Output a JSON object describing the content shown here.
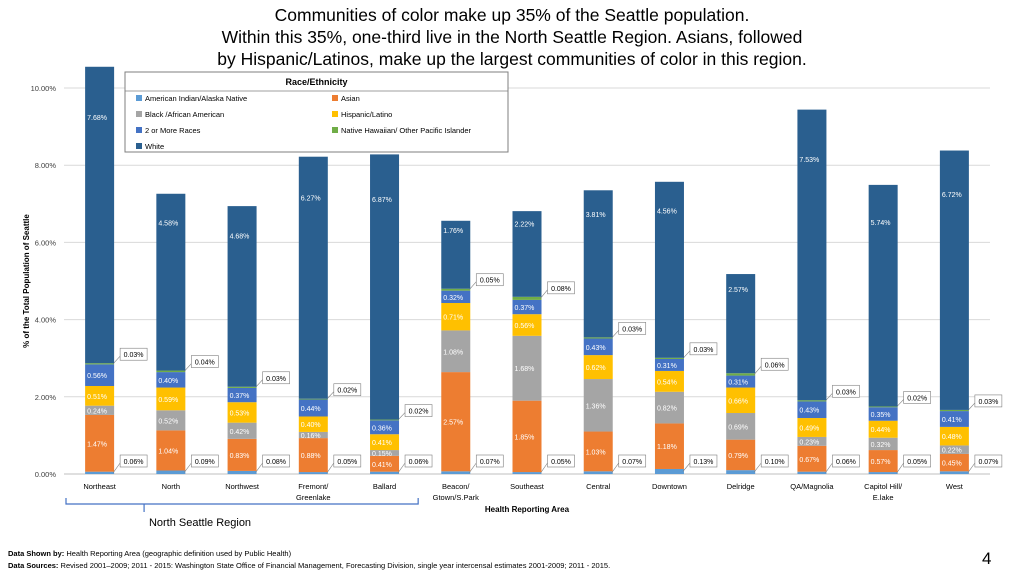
{
  "title_lines": [
    "Communities of color make up 35% of the Seattle population.",
    "Within this 35%, one-third live in the North Seattle Region. Asians, followed",
    "by Hispanic/Latinos, make up the largest communities of color in this region."
  ],
  "region_label": "North Seattle Region",
  "footer": {
    "shown_by_label": "Data Shown by:",
    "shown_by_text": " Health Reporting Area (geographic definition used by Public Health)",
    "sources_label": "Data Sources:",
    "sources_text": " Revised 2001–2009; 2011 - 2015: Washington State Office of Financial Management, Forecasting Division, single year intercensal estimates 2001-2009; 2011 - 2015."
  },
  "page_number": "4",
  "colors": {
    "white": "#2a5f8f",
    "asian": "#ed7d31",
    "black": "#a5a5a5",
    "hispanic": "#ffc000",
    "two_or_more": "#4472c4",
    "nhpi": "#70ad47",
    "aian": "#5b9bd5"
  },
  "chart_data": {
    "type": "bar",
    "stacked": true,
    "xlabel": "Health Reporting Area",
    "ylabel": "% of the Total Population of Seattle",
    "ylim": [
      0,
      10
    ],
    "yticks": [
      "0.00%",
      "2.00%",
      "4.00%",
      "6.00%",
      "8.00%",
      "10.00%"
    ],
    "legend": {
      "title": "Race/Ethnicity",
      "position": "top-left",
      "entries": [
        {
          "key": "aian",
          "label": "American Indian/Alaska Native"
        },
        {
          "key": "asian",
          "label": "Asian"
        },
        {
          "key": "black",
          "label": "Black /African American"
        },
        {
          "key": "hispanic",
          "label": "Hispanic/Latino"
        },
        {
          "key": "two_or_more",
          "label": "2 or More Races"
        },
        {
          "key": "nhpi",
          "label": "Native Hawaiian/ Other Pacific Islander"
        },
        {
          "key": "white",
          "label": "White"
        }
      ]
    },
    "categories": [
      {
        "label": [
          "Northeast"
        ]
      },
      {
        "label": [
          "North"
        ]
      },
      {
        "label": [
          "Northwest"
        ]
      },
      {
        "label": [
          "Fremont/",
          "Greenlake"
        ]
      },
      {
        "label": [
          "Ballard"
        ]
      },
      {
        "label": [
          "Beacon/",
          "Gtown/S.Park"
        ]
      },
      {
        "label": [
          "Southeast"
        ]
      },
      {
        "label": [
          "Central"
        ]
      },
      {
        "label": [
          "Downtown"
        ]
      },
      {
        "label": [
          "Delridge"
        ]
      },
      {
        "label": [
          "QA/Magnolia"
        ]
      },
      {
        "label": [
          "Capitol Hill/",
          "E.lake"
        ]
      },
      {
        "label": [
          "West"
        ]
      }
    ],
    "series": [
      {
        "key": "aian",
        "name": "American Indian/Alaska Native",
        "values": [
          0.06,
          0.09,
          0.08,
          0.05,
          0.06,
          0.07,
          0.05,
          0.07,
          0.13,
          0.1,
          0.06,
          0.05,
          0.07
        ],
        "labels": [
          "0.06%",
          "0.09%",
          "0.08%",
          "0.05%",
          "0.06%",
          "0.07%",
          "0.05%",
          "0.07%",
          "0.13%",
          "0.10%",
          "0.06%",
          "0.05%",
          "0.07%"
        ],
        "callout": true
      },
      {
        "key": "asian",
        "name": "Asian",
        "values": [
          1.47,
          1.04,
          0.83,
          0.88,
          0.41,
          2.57,
          1.85,
          1.03,
          1.18,
          0.79,
          0.67,
          0.57,
          0.45
        ],
        "labels": [
          "1.47%",
          "1.04%",
          "0.83%",
          "0.88%",
          "0.41%",
          "2.57%",
          "1.85%",
          "1.03%",
          "1.18%",
          "0.79%",
          "0.67%",
          "0.57%",
          "0.45%"
        ]
      },
      {
        "key": "black",
        "name": "Black /African American",
        "values": [
          0.24,
          0.52,
          0.42,
          0.16,
          0.15,
          1.08,
          1.68,
          1.36,
          0.82,
          0.69,
          0.23,
          0.32,
          0.22
        ],
        "labels": [
          "0.24%",
          "0.52%",
          "0.42%",
          "0.16%",
          "0.15%",
          "1.08%",
          "1.68%",
          "1.36%",
          "0.82%",
          "0.69%",
          "0.23%",
          "0.32%",
          "0.22%"
        ]
      },
      {
        "key": "hispanic",
        "name": "Hispanic/Latino",
        "values": [
          0.51,
          0.59,
          0.53,
          0.4,
          0.41,
          0.71,
          0.56,
          0.62,
          0.54,
          0.66,
          0.49,
          0.44,
          0.48
        ],
        "labels": [
          "0.51%",
          "0.59%",
          "0.53%",
          "0.40%",
          "0.41%",
          "0.71%",
          "0.56%",
          "0.62%",
          "0.54%",
          "0.66%",
          "0.49%",
          "0.44%",
          "0.48%"
        ]
      },
      {
        "key": "two_or_more",
        "name": "2 or More Races",
        "values": [
          0.56,
          0.4,
          0.37,
          0.44,
          0.36,
          0.32,
          0.37,
          0.43,
          0.31,
          0.31,
          0.43,
          0.35,
          0.41
        ],
        "labels": [
          "0.56%",
          "0.40%",
          "0.37%",
          "0.44%",
          "0.36%",
          "0.32%",
          "0.37%",
          "0.43%",
          "0.31%",
          "0.31%",
          "0.43%",
          "0.35%",
          "0.41%"
        ]
      },
      {
        "key": "nhpi",
        "name": "Native Hawaiian/ Other Pacific Islander",
        "values": [
          0.03,
          0.04,
          0.03,
          0.02,
          0.02,
          0.05,
          0.08,
          0.03,
          0.03,
          0.06,
          0.03,
          0.02,
          0.03
        ],
        "labels": [
          "0.03%",
          "0.04%",
          "0.03%",
          "0.02%",
          "0.02%",
          "0.05%",
          "0.08%",
          "0.03%",
          "0.03%",
          "0.06%",
          "0.03%",
          "0.02%",
          "0.03%"
        ],
        "callout": true
      },
      {
        "key": "white",
        "name": "White",
        "values": [
          7.68,
          4.58,
          4.68,
          6.27,
          6.87,
          1.76,
          2.22,
          3.81,
          4.56,
          2.57,
          7.53,
          5.74,
          6.72
        ],
        "labels": [
          "7.68%",
          "4.58%",
          "4.68%",
          "6.27%",
          "6.87%",
          "1.76%",
          "2.22%",
          "3.81%",
          "4.56%",
          "2.57%",
          "7.53%",
          "5.74%",
          "6.72%"
        ]
      }
    ]
  }
}
